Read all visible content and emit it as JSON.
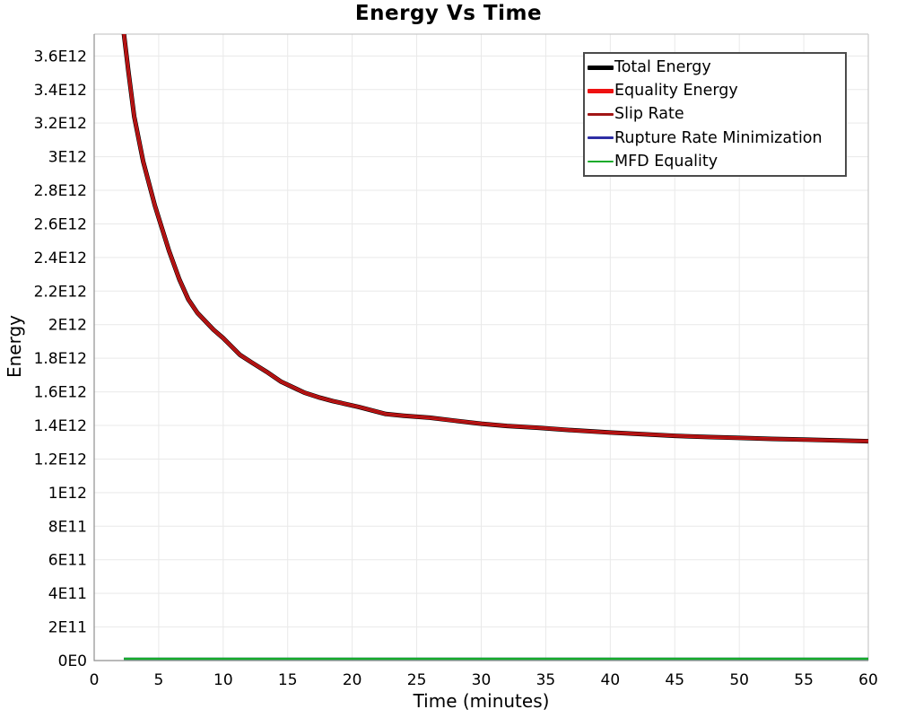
{
  "title": "Energy Vs Time",
  "axes": {
    "x_label": "Time (minutes)",
    "y_label": "Energy",
    "x_ticks": [
      0,
      5,
      10,
      15,
      20,
      25,
      30,
      35,
      40,
      45,
      50,
      55,
      60
    ],
    "y_ticks": [
      {
        "value": 0,
        "label": "0E0"
      },
      {
        "value": 200000000000.0,
        "label": "2E11"
      },
      {
        "value": 400000000000.0,
        "label": "4E11"
      },
      {
        "value": 600000000000.0,
        "label": "6E11"
      },
      {
        "value": 800000000000.0,
        "label": "8E11"
      },
      {
        "value": 1000000000000.0,
        "label": "1E12"
      },
      {
        "value": 1200000000000.0,
        "label": "1.2E12"
      },
      {
        "value": 1400000000000.0,
        "label": "1.4E12"
      },
      {
        "value": 1600000000000.0,
        "label": "1.6E12"
      },
      {
        "value": 1800000000000.0,
        "label": "1.8E12"
      },
      {
        "value": 2000000000000.0,
        "label": "2E12"
      },
      {
        "value": 2200000000000.0,
        "label": "2.2E12"
      },
      {
        "value": 2400000000000.0,
        "label": "2.4E12"
      },
      {
        "value": 2600000000000.0,
        "label": "2.6E12"
      },
      {
        "value": 2800000000000.0,
        "label": "2.8E12"
      },
      {
        "value": 3000000000000.0,
        "label": "3E12"
      },
      {
        "value": 3200000000000.0,
        "label": "3.2E12"
      },
      {
        "value": 3400000000000.0,
        "label": "3.4E12"
      },
      {
        "value": 3600000000000.0,
        "label": "3.6E12"
      }
    ]
  },
  "legend": {
    "position": "top-right",
    "items": [
      {
        "label": "Total Energy",
        "color": "#000000",
        "line_weight": 5
      },
      {
        "label": "Equality Energy",
        "color": "#ee1111",
        "line_weight": 5
      },
      {
        "label": "Slip Rate",
        "color": "#a11515",
        "line_weight": 2.5
      },
      {
        "label": "Rupture Rate Minimization",
        "color": "#2e2ea5",
        "line_weight": 2.5
      },
      {
        "label": "MFD Equality",
        "color": "#15ab2a",
        "line_weight": 2.5
      }
    ]
  },
  "chart_data": {
    "type": "line",
    "title": "Energy Vs Time",
    "xlabel": "Time (minutes)",
    "ylabel": "Energy",
    "xlim": [
      0,
      60
    ],
    "ylim": [
      0,
      3730000000000.0
    ],
    "grid": true,
    "legend_position": "top-right",
    "x": [
      2.3,
      2.65,
      3.1,
      3.8,
      4.7,
      5.8,
      6.6,
      7.3,
      8.0,
      9.25,
      10.0,
      11.3,
      12.2,
      13.35,
      14.5,
      15.6,
      16.3,
      17.5,
      18.5,
      20.5,
      22.6,
      24.0,
      26.0,
      28.0,
      30.0,
      32.0,
      34.4,
      37.0,
      40.0,
      42.5,
      45.0,
      47.5,
      50.0,
      52.5,
      55.3,
      58.0,
      60.0
    ],
    "energy_curve": [
      3733000000000.0,
      3510000000000.0,
      3240000000000.0,
      2970000000000.0,
      2710000000000.0,
      2440000000000.0,
      2270000000000.0,
      2150000000000.0,
      2070000000000.0,
      1970000000000.0,
      1920000000000.0,
      1820000000000.0,
      1775000000000.0,
      1720000000000.0,
      1660000000000.0,
      1620000000000.0,
      1595000000000.0,
      1565000000000.0,
      1545000000000.0,
      1510000000000.0,
      1468000000000.0,
      1458000000000.0,
      1446000000000.0,
      1428000000000.0,
      1410000000000.0,
      1397000000000.0,
      1386000000000.0,
      1372000000000.0,
      1358000000000.0,
      1348000000000.0,
      1338000000000.0,
      1331000000000.0,
      1326000000000.0,
      1320000000000.0,
      1315000000000.0,
      1310000000000.0,
      1306000000000.0
    ],
    "series": [
      {
        "name": "Total Energy",
        "color": "#000000",
        "stroke_width": 5,
        "y_from": "energy_curve"
      },
      {
        "name": "Equality Energy",
        "color": "#ee1111",
        "stroke_width": 3.6,
        "y_from": "energy_curve"
      },
      {
        "name": "Slip Rate",
        "color": "#a11515",
        "stroke_width": 2,
        "y_from": "energy_curve"
      },
      {
        "name": "Rupture Rate Minimization",
        "color": "#2e2ea5",
        "stroke_width": 2.5,
        "y_from": "zero"
      },
      {
        "name": "MFD Equality",
        "color": "#15ab2a",
        "stroke_width": 2.5,
        "y_from": "zero"
      }
    ]
  }
}
